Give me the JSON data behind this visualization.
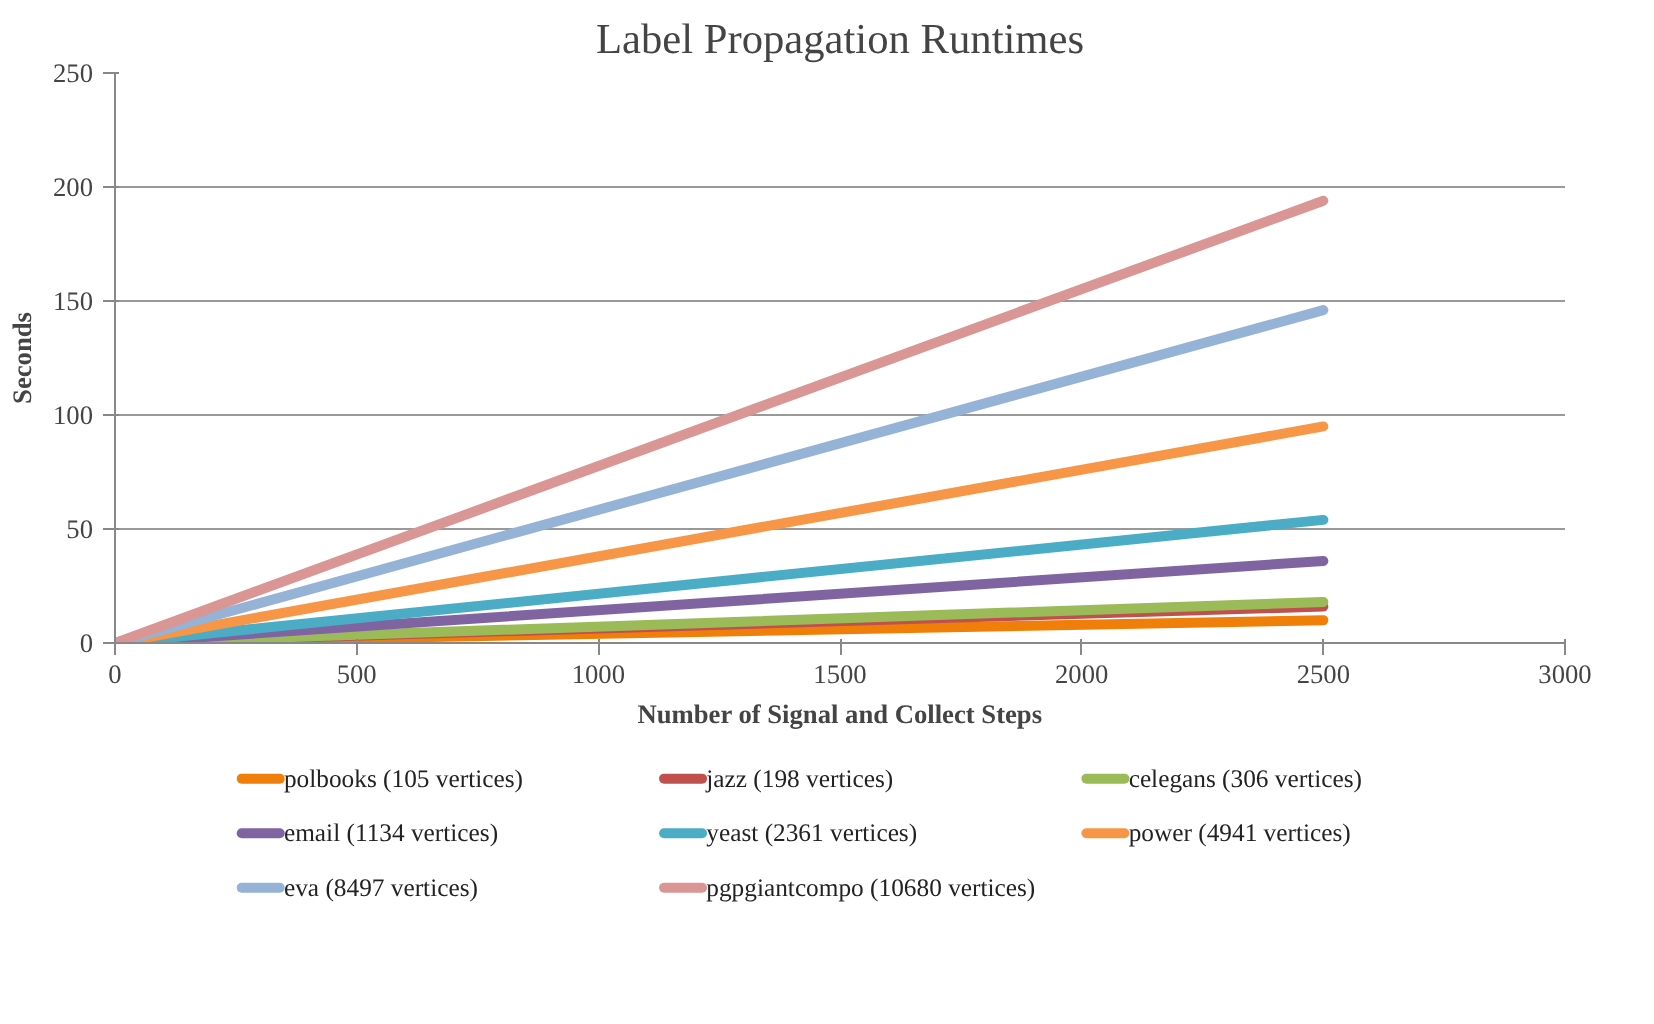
{
  "chart_data": {
    "type": "line",
    "title": "Label Propagation Runtimes",
    "xlabel": "Number of Signal and Collect Steps",
    "ylabel": "Seconds",
    "x": [
      0,
      2500
    ],
    "xlim": [
      0,
      3000
    ],
    "xticks": [
      0,
      500,
      1000,
      1500,
      2000,
      2500,
      3000
    ],
    "ylim": [
      0,
      250
    ],
    "yticks": [
      0,
      50,
      100,
      150,
      200,
      250
    ],
    "grid": "y",
    "legend": "bottom",
    "marker": "none",
    "line_style": "solid",
    "series": [
      {
        "name": "polbooks (105 vertices)",
        "color": "#f07f09",
        "values": [
          0,
          10
        ]
      },
      {
        "name": "jazz (198 vertices)",
        "color": "#c0504d",
        "values": [
          0,
          16
        ]
      },
      {
        "name": "celegans (306 vertices)",
        "color": "#9bbb59",
        "values": [
          0,
          18
        ]
      },
      {
        "name": "email (1134 vertices)",
        "color": "#8064a2",
        "values": [
          0,
          36
        ]
      },
      {
        "name": "yeast (2361 vertices)",
        "color": "#4bacc6",
        "values": [
          0,
          54
        ]
      },
      {
        "name": "power (4941 vertices)",
        "color": "#f79646",
        "values": [
          0,
          95
        ]
      },
      {
        "name": "eva (8497 vertices)",
        "color": "#95b3d7",
        "values": [
          0,
          146
        ]
      },
      {
        "name": "pgpgiantcompo (10680 vertices)",
        "color": "#d99694",
        "values": [
          0,
          194
        ]
      }
    ]
  }
}
